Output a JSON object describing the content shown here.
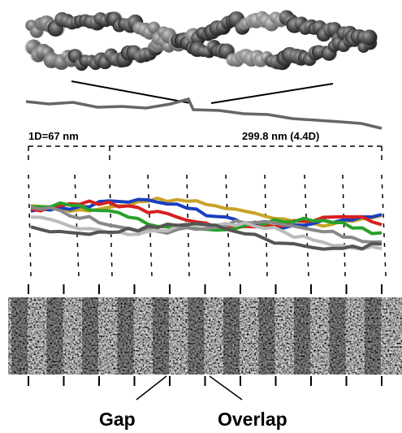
{
  "labels": {
    "scale_left": "1D=67 nm",
    "scale_right": "299.8 nm (4.4D)",
    "gap": "Gap",
    "overlap": "Overlap"
  }
}
